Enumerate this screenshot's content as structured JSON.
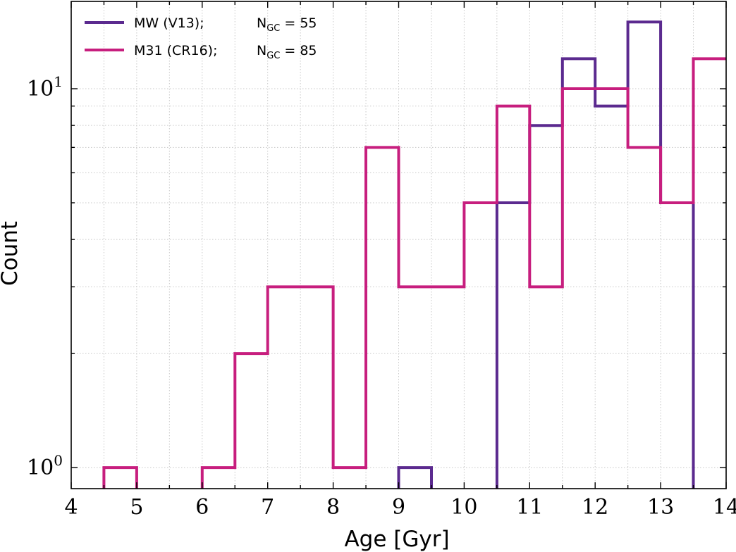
{
  "chart_data": {
    "type": "histogram-step",
    "xlabel": "Age [Gyr]",
    "ylabel": "Count",
    "xlim": [
      4,
      14
    ],
    "ylim": [
      0.88,
      17
    ],
    "yscale": "log",
    "grid": true,
    "bin_width": 0.5,
    "x_ticks": [
      "4",
      "5",
      "6",
      "7",
      "8",
      "9",
      "10",
      "11",
      "12",
      "13",
      "14"
    ],
    "y_ticks": [
      {
        "base": "10",
        "exp": "0",
        "value": 1
      },
      {
        "base": "10",
        "exp": "1",
        "value": 10
      }
    ],
    "legend_position": "top-left",
    "series": [
      {
        "name": "MW (V13);",
        "n_label": "N",
        "n_sub": "GC",
        "n_value": "= 55",
        "color": "#5b2a8f",
        "bins": [
          {
            "x0": 9.0,
            "x1": 9.5,
            "count": 1
          },
          {
            "x0": 10.5,
            "x1": 11.0,
            "count": 5
          },
          {
            "x0": 11.0,
            "x1": 11.5,
            "count": 8
          },
          {
            "x0": 11.5,
            "x1": 12.0,
            "count": 12
          },
          {
            "x0": 12.0,
            "x1": 12.5,
            "count": 9
          },
          {
            "x0": 12.5,
            "x1": 13.0,
            "count": 15
          },
          {
            "x0": 13.0,
            "x1": 13.5,
            "count": 5
          }
        ]
      },
      {
        "name": "M31 (CR16);",
        "n_label": "N",
        "n_sub": "GC",
        "n_value": "= 85",
        "color": "#c71e7e",
        "bins": [
          {
            "x0": 4.5,
            "x1": 5.0,
            "count": 1
          },
          {
            "x0": 6.0,
            "x1": 6.5,
            "count": 1
          },
          {
            "x0": 6.5,
            "x1": 7.0,
            "count": 2
          },
          {
            "x0": 7.0,
            "x1": 7.5,
            "count": 3
          },
          {
            "x0": 7.5,
            "x1": 8.0,
            "count": 3
          },
          {
            "x0": 8.0,
            "x1": 8.5,
            "count": 1
          },
          {
            "x0": 8.5,
            "x1": 9.0,
            "count": 7
          },
          {
            "x0": 9.0,
            "x1": 9.5,
            "count": 3
          },
          {
            "x0": 9.5,
            "x1": 10.0,
            "count": 3
          },
          {
            "x0": 10.0,
            "x1": 10.5,
            "count": 5
          },
          {
            "x0": 10.5,
            "x1": 11.0,
            "count": 9
          },
          {
            "x0": 11.0,
            "x1": 11.5,
            "count": 3
          },
          {
            "x0": 11.5,
            "x1": 12.0,
            "count": 10
          },
          {
            "x0": 12.0,
            "x1": 12.5,
            "count": 10
          },
          {
            "x0": 12.5,
            "x1": 13.0,
            "count": 7
          },
          {
            "x0": 13.0,
            "x1": 13.5,
            "count": 5
          },
          {
            "x0": 13.5,
            "x1": 14.0,
            "count": 12
          }
        ]
      }
    ]
  }
}
